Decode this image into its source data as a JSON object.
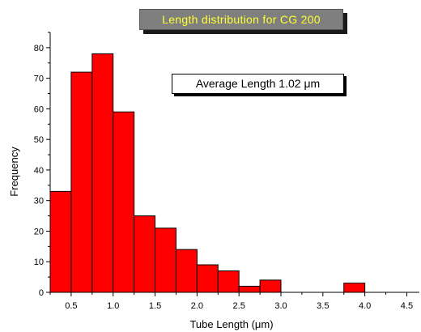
{
  "chart_data": {
    "type": "bar",
    "title": "Length distribution for CG 200",
    "xlabel": "Tube Length (μm)",
    "ylabel": "Frequency",
    "annotation": "Average Length 1.02 μm",
    "x": [
      0.375,
      0.625,
      0.875,
      1.125,
      1.375,
      1.625,
      1.875,
      2.125,
      2.375,
      2.625,
      2.875,
      3.125,
      3.375,
      3.625,
      3.875,
      4.125
    ],
    "values": [
      33,
      72,
      78,
      59,
      25,
      21,
      14,
      9,
      7,
      2,
      4,
      0,
      0,
      0,
      3,
      0
    ],
    "xlim": [
      0.25,
      4.65
    ],
    "ylim": [
      0,
      85
    ],
    "xticks": [
      0.5,
      1.0,
      1.5,
      2.0,
      2.5,
      3.0,
      3.5,
      4.0,
      4.5
    ],
    "xtick_labels": [
      "0.5",
      "1.0",
      "1.5",
      "2.0",
      "2.5",
      "3.0",
      "3.5",
      "4.0",
      "4.5"
    ],
    "yticks": [
      0,
      10,
      20,
      30,
      40,
      50,
      60,
      70,
      80
    ],
    "ytick_labels": [
      "0",
      "10",
      "20",
      "30",
      "40",
      "50",
      "60",
      "70",
      "80"
    ],
    "bar_color": "#ff0000",
    "title_bg": "#7f7f7f",
    "title_color": "#ffff33",
    "grid": false,
    "legend": "none"
  }
}
